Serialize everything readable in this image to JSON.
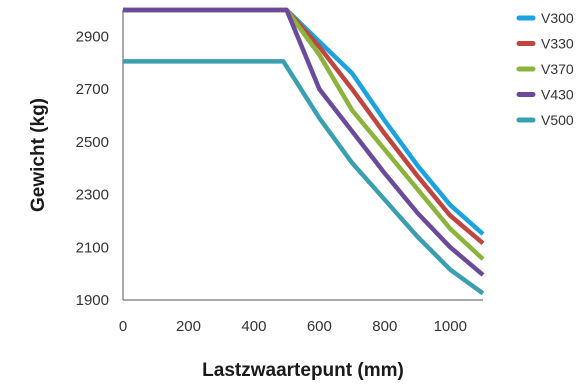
{
  "chart_data": {
    "type": "line",
    "xlabel": "Lastzwaartepunt (mm)",
    "ylabel": "Gewicht (kg)",
    "xlim": [
      0,
      1100
    ],
    "ylim": [
      1900,
      3000
    ],
    "x_ticks": [
      0,
      200,
      400,
      600,
      800,
      1000
    ],
    "y_ticks": [
      1900,
      2100,
      2300,
      2500,
      2700,
      2900
    ],
    "grid": false,
    "legend_position": "right",
    "series": [
      {
        "name": "V300",
        "color": "#1aa3e0",
        "points": [
          [
            0,
            3000
          ],
          [
            500,
            3000
          ],
          [
            600,
            2880
          ],
          [
            700,
            2760
          ],
          [
            800,
            2580
          ],
          [
            900,
            2410
          ],
          [
            1000,
            2260
          ],
          [
            1100,
            2150
          ]
        ]
      },
      {
        "name": "V330",
        "color": "#c0453f",
        "points": [
          [
            0,
            3000
          ],
          [
            500,
            3000
          ],
          [
            600,
            2860
          ],
          [
            700,
            2700
          ],
          [
            800,
            2530
          ],
          [
            900,
            2370
          ],
          [
            1000,
            2220
          ],
          [
            1100,
            2115
          ]
        ]
      },
      {
        "name": "V370",
        "color": "#8ab43c",
        "points": [
          [
            0,
            3000
          ],
          [
            500,
            3000
          ],
          [
            600,
            2830
          ],
          [
            700,
            2620
          ],
          [
            800,
            2470
          ],
          [
            900,
            2320
          ],
          [
            1000,
            2170
          ],
          [
            1100,
            2055
          ]
        ]
      },
      {
        "name": "V430",
        "color": "#6b4a9b",
        "points": [
          [
            0,
            3000
          ],
          [
            500,
            3000
          ],
          [
            600,
            2700
          ],
          [
            700,
            2540
          ],
          [
            800,
            2380
          ],
          [
            900,
            2230
          ],
          [
            1000,
            2100
          ],
          [
            1100,
            1995
          ]
        ]
      },
      {
        "name": "V500",
        "color": "#3a9fb0",
        "points": [
          [
            0,
            2805
          ],
          [
            490,
            2805
          ],
          [
            600,
            2590
          ],
          [
            700,
            2420
          ],
          [
            800,
            2280
          ],
          [
            900,
            2140
          ],
          [
            1000,
            2015
          ],
          [
            1100,
            1925
          ]
        ]
      }
    ]
  }
}
